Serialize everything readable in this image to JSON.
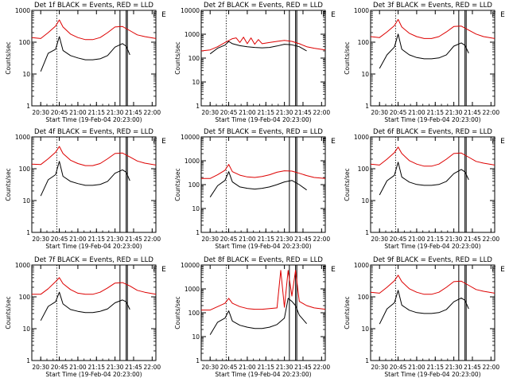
{
  "chart_data": [
    {
      "type": "line",
      "title": "Det 1f BLACK = Events, RED = LLD",
      "xlabel": "Start Time (19-Feb-04 20:23:00)",
      "ylabel": "Counts/sec",
      "yscale": "log",
      "ylim": [
        1,
        1000
      ],
      "y_ticks": [
        "1",
        "10",
        "100",
        "1000"
      ],
      "x_ticks": [
        "20:30",
        "20:45",
        "21:00",
        "21:15",
        "21:30",
        "21:45",
        "22:00"
      ],
      "x_range_minutes": [
        20.38,
        22.05
      ],
      "event_lines": [
        "20:43",
        "21:34",
        "21:39",
        "21:40"
      ],
      "markers": [
        "F",
        "E"
      ],
      "series": [
        {
          "color": "#000000",
          "x": [
            20.5,
            20.6,
            20.7,
            20.75,
            20.8,
            20.9,
            21.0,
            21.1,
            21.2,
            21.3,
            21.4,
            21.5,
            21.6,
            21.65,
            21.7
          ],
          "values": [
            12,
            45,
            60,
            150,
            55,
            38,
            32,
            28,
            28,
            30,
            38,
            70,
            90,
            75,
            40
          ]
        },
        {
          "color": "#dd0000",
          "x": [
            20.38,
            20.5,
            20.6,
            20.7,
            20.75,
            20.8,
            20.9,
            21.0,
            21.1,
            21.2,
            21.3,
            21.4,
            21.5,
            21.6,
            21.7,
            21.8,
            21.9,
            22.05
          ],
          "values": [
            140,
            130,
            200,
            320,
            500,
            300,
            180,
            140,
            120,
            120,
            140,
            200,
            300,
            310,
            230,
            170,
            150,
            130
          ]
        }
      ]
    },
    {
      "type": "line",
      "title": "Det 2f BLACK = Events, RED = LLD",
      "xlabel": "Start Time (19-Feb-04 20:23:00)",
      "ylabel": "Counts/sec",
      "yscale": "log",
      "ylim": [
        1,
        10000
      ],
      "y_ticks": [
        "1",
        "10",
        "100",
        "1000",
        "10000"
      ],
      "x_ticks": [
        "20:30",
        "20:45",
        "21:00",
        "21:15",
        "21:30",
        "21:45",
        "22:00"
      ],
      "x_range_minutes": [
        20.38,
        22.05
      ],
      "event_lines": [
        "20:43",
        "21:34",
        "21:39",
        "21:40"
      ],
      "markers": [
        "F",
        "E"
      ],
      "series": [
        {
          "color": "#000000",
          "x": [
            20.5,
            20.6,
            20.7,
            20.75,
            20.8,
            20.9,
            21.0,
            21.1,
            21.2,
            21.3,
            21.4,
            21.5,
            21.6,
            21.7,
            21.8
          ],
          "values": [
            150,
            260,
            350,
            500,
            400,
            330,
            300,
            280,
            270,
            280,
            320,
            380,
            360,
            300,
            200
          ]
        },
        {
          "color": "#dd0000",
          "x": [
            20.38,
            20.5,
            20.6,
            20.7,
            20.8,
            20.85,
            20.9,
            20.95,
            21.0,
            21.05,
            21.1,
            21.15,
            21.2,
            21.3,
            21.4,
            21.5,
            21.6,
            21.7,
            21.8,
            21.9,
            22.05
          ],
          "values": [
            200,
            220,
            300,
            450,
            650,
            700,
            450,
            750,
            400,
            700,
            380,
            600,
            400,
            450,
            500,
            550,
            500,
            400,
            300,
            260,
            220
          ]
        }
      ]
    },
    {
      "type": "line",
      "title": "Det 3f BLACK = Events, RED = LLD",
      "xlabel": "Start Time (19-Feb-04 20:23:00)",
      "ylabel": "Counts/sec",
      "yscale": "log",
      "ylim": [
        1,
        1000
      ],
      "y_ticks": [
        "1",
        "10",
        "100",
        "1000"
      ],
      "x_ticks": [
        "20:30",
        "20:45",
        "21:00",
        "21:15",
        "21:30",
        "21:45",
        "22:00"
      ],
      "x_range_minutes": [
        20.38,
        22.05
      ],
      "event_lines": [
        "20:43",
        "21:34",
        "21:39",
        "21:40"
      ],
      "markers": [
        "F",
        "E"
      ],
      "series": [
        {
          "color": "#000000",
          "x": [
            20.5,
            20.6,
            20.7,
            20.75,
            20.8,
            20.9,
            21.0,
            21.1,
            21.2,
            21.3,
            21.4,
            21.5,
            21.6,
            21.65,
            21.7
          ],
          "values": [
            15,
            40,
            70,
            180,
            60,
            40,
            33,
            30,
            30,
            32,
            40,
            75,
            95,
            80,
            45
          ]
        },
        {
          "color": "#dd0000",
          "x": [
            20.38,
            20.5,
            20.6,
            20.7,
            20.75,
            20.8,
            20.9,
            21.0,
            21.1,
            21.2,
            21.3,
            21.4,
            21.5,
            21.6,
            21.7,
            21.8,
            21.9,
            22.05
          ],
          "values": [
            150,
            140,
            210,
            330,
            520,
            300,
            190,
            150,
            130,
            130,
            150,
            210,
            310,
            320,
            240,
            180,
            150,
            130
          ]
        }
      ]
    },
    {
      "type": "line",
      "title": "Det 4f BLACK = Events, RED = LLD",
      "xlabel": "Start Time (19-Feb-04 20:23:00)",
      "ylabel": "Counts/sec",
      "yscale": "log",
      "ylim": [
        1,
        1000
      ],
      "y_ticks": [
        "1",
        "10",
        "100",
        "1000"
      ],
      "x_ticks": [
        "20:30",
        "20:45",
        "21:00",
        "21:15",
        "21:30",
        "21:45",
        "22:00"
      ],
      "x_range_minutes": [
        20.38,
        22.05
      ],
      "event_lines": [
        "20:43",
        "21:34",
        "21:39",
        "21:40"
      ],
      "markers": [
        "F",
        "E"
      ],
      "series": [
        {
          "color": "#000000",
          "x": [
            20.5,
            20.6,
            20.7,
            20.75,
            20.8,
            20.9,
            21.0,
            21.1,
            21.2,
            21.3,
            21.4,
            21.5,
            21.6,
            21.65,
            21.7
          ],
          "values": [
            14,
            45,
            65,
            170,
            58,
            40,
            34,
            30,
            30,
            32,
            40,
            72,
            92,
            78,
            42
          ]
        },
        {
          "color": "#dd0000",
          "x": [
            20.38,
            20.5,
            20.6,
            20.7,
            20.75,
            20.8,
            20.9,
            21.0,
            21.1,
            21.2,
            21.3,
            21.4,
            21.5,
            21.6,
            21.7,
            21.8,
            21.9,
            22.05
          ],
          "values": [
            140,
            135,
            205,
            330,
            500,
            300,
            185,
            145,
            125,
            125,
            145,
            205,
            300,
            310,
            235,
            175,
            150,
            130
          ]
        }
      ]
    },
    {
      "type": "line",
      "title": "Det 5f BLACK = Events, RED = LLD",
      "xlabel": "Start Time (19-Feb-04 20:23:00)",
      "ylabel": "Counts/sec",
      "yscale": "log",
      "ylim": [
        1,
        10000
      ],
      "y_ticks": [
        "1",
        "10",
        "100",
        "1000",
        "10000"
      ],
      "x_ticks": [
        "20:30",
        "20:45",
        "21:00",
        "21:15",
        "21:30",
        "21:45",
        "22:00"
      ],
      "x_range_minutes": [
        20.38,
        22.05
      ],
      "event_lines": [
        "20:43",
        "21:34",
        "21:39",
        "21:40"
      ],
      "markers": [
        "F",
        "E"
      ],
      "series": [
        {
          "color": "#000000",
          "x": [
            20.5,
            20.6,
            20.7,
            20.75,
            20.8,
            20.9,
            21.0,
            21.1,
            21.2,
            21.3,
            21.4,
            21.5,
            21.6,
            21.7,
            21.8
          ],
          "values": [
            30,
            90,
            150,
            350,
            130,
            80,
            70,
            65,
            70,
            80,
            100,
            130,
            150,
            100,
            60
          ]
        },
        {
          "color": "#dd0000",
          "x": [
            20.38,
            20.5,
            20.6,
            20.7,
            20.75,
            20.8,
            20.9,
            21.0,
            21.1,
            21.2,
            21.3,
            21.4,
            21.5,
            21.6,
            21.7,
            21.8,
            21.9,
            22.05
          ],
          "values": [
            180,
            180,
            260,
            400,
            700,
            350,
            250,
            210,
            200,
            220,
            260,
            330,
            380,
            370,
            300,
            240,
            200,
            180
          ]
        }
      ]
    },
    {
      "type": "line",
      "title": "Det 6f BLACK = Events, RED = LLD",
      "xlabel": "Start Time (19-Feb-04 20:23:00)",
      "ylabel": "Counts/sec",
      "yscale": "log",
      "ylim": [
        1,
        1000
      ],
      "y_ticks": [
        "1",
        "10",
        "100",
        "1000"
      ],
      "x_ticks": [
        "20:30",
        "20:45",
        "21:00",
        "21:15",
        "21:30",
        "21:45",
        "22:00"
      ],
      "x_range_minutes": [
        20.38,
        22.05
      ],
      "event_lines": [
        "20:43",
        "21:34",
        "21:39",
        "21:40"
      ],
      "markers": [
        "F",
        "E"
      ],
      "series": [
        {
          "color": "#000000",
          "x": [
            20.5,
            20.6,
            20.7,
            20.75,
            20.8,
            20.9,
            21.0,
            21.1,
            21.2,
            21.3,
            21.4,
            21.5,
            21.6,
            21.65,
            21.7
          ],
          "values": [
            15,
            42,
            62,
            160,
            55,
            38,
            32,
            30,
            30,
            32,
            40,
            70,
            95,
            80,
            45
          ]
        },
        {
          "color": "#dd0000",
          "x": [
            20.38,
            20.5,
            20.6,
            20.7,
            20.75,
            20.8,
            20.9,
            21.0,
            21.1,
            21.2,
            21.3,
            21.4,
            21.5,
            21.6,
            21.7,
            21.8,
            21.9,
            22.05
          ],
          "values": [
            140,
            130,
            200,
            320,
            480,
            300,
            180,
            140,
            120,
            120,
            140,
            200,
            300,
            310,
            230,
            170,
            150,
            130
          ]
        }
      ]
    },
    {
      "type": "line",
      "title": "Det 7f BLACK = Events, RED = LLD",
      "xlabel": "Start Time (19-Feb-04 20:23:00)",
      "ylabel": "Counts/sec",
      "yscale": "log",
      "ylim": [
        1,
        1000
      ],
      "y_ticks": [
        "1",
        "10",
        "100",
        "1000"
      ],
      "x_ticks": [
        "20:30",
        "20:45",
        "21:00",
        "21:15",
        "21:30",
        "21:45",
        "22:00"
      ],
      "x_range_minutes": [
        20.38,
        22.05
      ],
      "event_lines": [
        "20:43",
        "21:34",
        "21:39",
        "21:40"
      ],
      "markers": [
        "F",
        "E"
      ],
      "series": [
        {
          "color": "#000000",
          "x": [
            20.5,
            20.6,
            20.7,
            20.75,
            20.8,
            20.9,
            21.0,
            21.1,
            21.2,
            21.3,
            21.4,
            21.5,
            21.6,
            21.65,
            21.7
          ],
          "values": [
            18,
            50,
            70,
            140,
            60,
            40,
            35,
            32,
            32,
            35,
            42,
            65,
            80,
            70,
            40
          ]
        },
        {
          "color": "#dd0000",
          "x": [
            20.38,
            20.5,
            20.6,
            20.7,
            20.75,
            20.8,
            20.9,
            21.0,
            21.1,
            21.2,
            21.3,
            21.4,
            21.5,
            21.6,
            21.7,
            21.8,
            21.9,
            22.05
          ],
          "values": [
            120,
            120,
            180,
            300,
            400,
            260,
            170,
            130,
            120,
            120,
            140,
            190,
            270,
            280,
            220,
            160,
            140,
            120
          ]
        }
      ]
    },
    {
      "type": "line",
      "title": "Det 8f BLACK = Events, RED = LLD",
      "xlabel": "Start Time (19-Feb-04 20:23:00)",
      "ylabel": "Counts/sec",
      "yscale": "log",
      "ylim": [
        1,
        10000
      ],
      "y_ticks": [
        "1",
        "10",
        "100",
        "1000",
        "10000"
      ],
      "x_ticks": [
        "20:30",
        "20:45",
        "21:00",
        "21:15",
        "21:30",
        "21:45",
        "22:00"
      ],
      "x_range_minutes": [
        20.38,
        22.05
      ],
      "event_lines": [
        "20:43",
        "21:34",
        "21:39",
        "21:40"
      ],
      "markers": [
        "F",
        "E"
      ],
      "series": [
        {
          "color": "#000000",
          "x": [
            20.5,
            20.6,
            20.7,
            20.75,
            20.8,
            20.9,
            21.0,
            21.1,
            21.2,
            21.3,
            21.4,
            21.5,
            21.55,
            21.6,
            21.65,
            21.7,
            21.8
          ],
          "values": [
            12,
            40,
            60,
            120,
            45,
            30,
            25,
            22,
            22,
            25,
            32,
            60,
            400,
            300,
            200,
            80,
            35
          ]
        },
        {
          "color": "#dd0000",
          "x": [
            20.38,
            20.5,
            20.6,
            20.7,
            20.75,
            20.8,
            20.9,
            21.0,
            21.1,
            21.2,
            21.3,
            21.4,
            21.45,
            21.5,
            21.55,
            21.6,
            21.65,
            21.7,
            21.8,
            21.9,
            22.05
          ],
          "values": [
            130,
            130,
            180,
            250,
            400,
            250,
            180,
            150,
            140,
            140,
            150,
            160,
            6000,
            170,
            6000,
            500,
            6000,
            300,
            200,
            160,
            140
          ]
        }
      ]
    },
    {
      "type": "line",
      "title": "Det 9f BLACK = Events, RED = LLD",
      "xlabel": "Start Time (19-Feb-04 20:23:00)",
      "ylabel": "Counts/sec",
      "yscale": "log",
      "ylim": [
        1,
        1000
      ],
      "y_ticks": [
        "1",
        "10",
        "100",
        "1000"
      ],
      "x_ticks": [
        "20:30",
        "20:45",
        "21:00",
        "21:15",
        "21:30",
        "21:45",
        "22:00"
      ],
      "x_range_minutes": [
        20.38,
        22.05
      ],
      "event_lines": [
        "20:43",
        "21:34",
        "21:39",
        "21:40"
      ],
      "markers": [
        "F",
        "E"
      ],
      "series": [
        {
          "color": "#000000",
          "x": [
            20.5,
            20.6,
            20.7,
            20.75,
            20.8,
            20.9,
            21.0,
            21.1,
            21.2,
            21.3,
            21.4,
            21.5,
            21.6,
            21.65,
            21.7
          ],
          "values": [
            14,
            42,
            65,
            160,
            55,
            38,
            32,
            30,
            30,
            32,
            40,
            70,
            92,
            78,
            42
          ]
        },
        {
          "color": "#dd0000",
          "x": [
            20.38,
            20.5,
            20.6,
            20.7,
            20.75,
            20.8,
            20.9,
            21.0,
            21.1,
            21.2,
            21.3,
            21.4,
            21.5,
            21.6,
            21.7,
            21.8,
            21.9,
            22.05
          ],
          "values": [
            140,
            130,
            200,
            320,
            480,
            300,
            180,
            140,
            120,
            120,
            140,
            200,
            300,
            310,
            230,
            170,
            150,
            130
          ]
        }
      ]
    }
  ]
}
